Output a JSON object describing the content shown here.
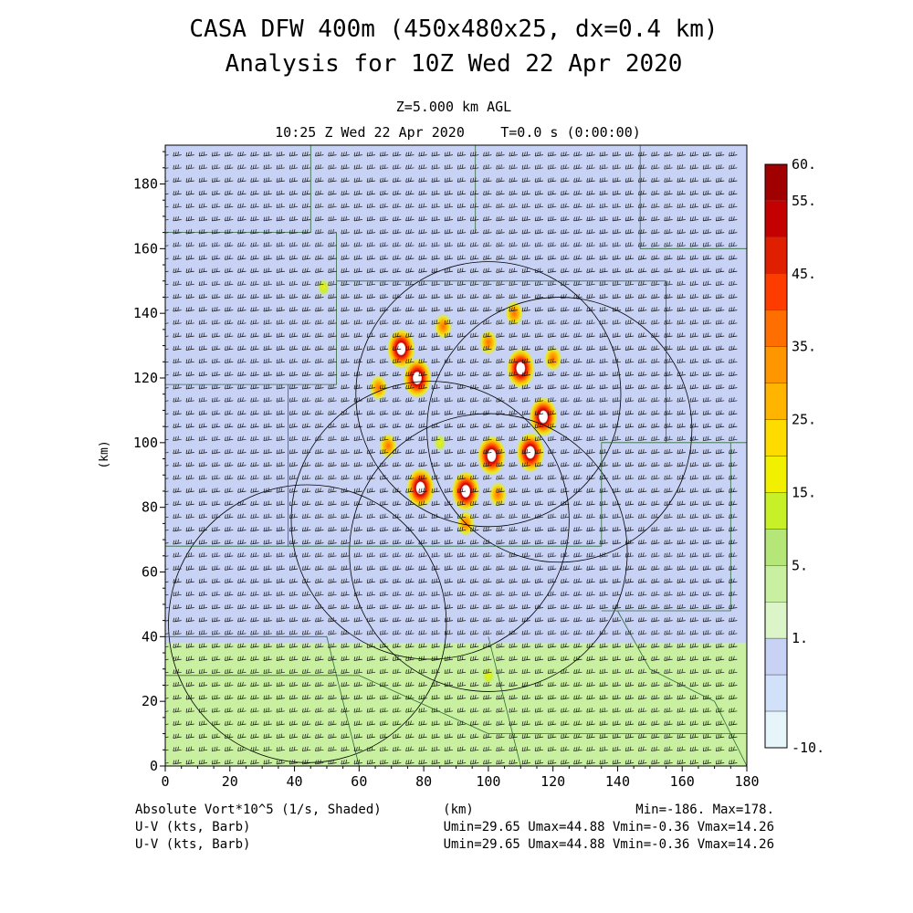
{
  "header": {
    "title_line1": "CASA DFW 400m (450x480x25, dx=0.4 km)",
    "title_line2": "Analysis for 10Z Wed 22 Apr 2020",
    "level": "Z=5.000 km AGL",
    "valid_time": "10:25 Z Wed 22 Apr 2020",
    "model_time": "T=0.0 s (0:00:00)"
  },
  "chart_data": {
    "type": "heatmap",
    "field": "Absolute Vort*10^5 (1/s, Shaded)",
    "xlabel": "(km)",
    "ylabel": "(km)",
    "xlim": [
      0,
      180
    ],
    "ylim": [
      0,
      192
    ],
    "x_ticks": [
      "0",
      "20",
      "40",
      "60",
      "80",
      "100",
      "120",
      "140",
      "160",
      "180"
    ],
    "y_ticks": [
      "0",
      "20",
      "40",
      "60",
      "80",
      "100",
      "120",
      "140",
      "160",
      "180"
    ],
    "colorbar": {
      "labels": [
        "60.",
        "55.",
        "45.",
        "35.",
        "25.",
        "15.",
        "5.",
        "1.",
        "-10."
      ],
      "colors": [
        "#a00000",
        "#c40000",
        "#e01e00",
        "#ff3c00",
        "#ff6e00",
        "#ff9600",
        "#ffb400",
        "#ffdc00",
        "#f0f000",
        "#c8f028",
        "#b4e678",
        "#c8f0a0",
        "#dcf5c8",
        "#c8d2f5",
        "#d2e1fa",
        "#e6f5fa"
      ]
    },
    "background_regions": [
      {
        "x": [
          0,
          180
        ],
        "y": [
          0,
          38
        ],
        "level": "5."
      },
      {
        "x": [
          0,
          180
        ],
        "y": [
          38,
          192
        ],
        "level": "1."
      }
    ],
    "vort_features": [
      {
        "x": 79,
        "y": 86,
        "value": 60
      },
      {
        "x": 73,
        "y": 129,
        "value": 55
      },
      {
        "x": 93,
        "y": 85,
        "value": 60
      },
      {
        "x": 101,
        "y": 96,
        "value": 45
      },
      {
        "x": 113,
        "y": 97,
        "value": 60
      },
      {
        "x": 117,
        "y": 108,
        "value": 60
      },
      {
        "x": 110,
        "y": 123,
        "value": 45
      },
      {
        "x": 100,
        "y": 131,
        "value": 35
      },
      {
        "x": 86,
        "y": 136,
        "value": 25
      },
      {
        "x": 78,
        "y": 120,
        "value": 45
      },
      {
        "x": 69,
        "y": 99,
        "value": 35
      },
      {
        "x": 93,
        "y": 75,
        "value": 25
      },
      {
        "x": 120,
        "y": 126,
        "value": 35
      },
      {
        "x": 66,
        "y": 117,
        "value": 25
      },
      {
        "x": 108,
        "y": 140,
        "value": 25
      },
      {
        "x": 103,
        "y": 84,
        "value": 25
      },
      {
        "x": 85,
        "y": 100,
        "value": 15
      },
      {
        "x": 100,
        "y": 28,
        "value": 15
      },
      {
        "x": 49,
        "y": 148,
        "value": 5
      }
    ],
    "radar_rings": [
      {
        "cx": 82,
        "cy": 76,
        "r": 43
      },
      {
        "cx": 100,
        "cy": 66,
        "r": 43
      },
      {
        "cx": 100,
        "cy": 115,
        "r": 41
      },
      {
        "cx": 44,
        "cy": 44,
        "r": 43
      },
      {
        "cx": 122,
        "cy": 104,
        "r": 41
      }
    ],
    "wind_barbs": {
      "field": "U-V (kts, Barb)",
      "umin": 29.65,
      "umax": 44.88,
      "vmin": -0.36,
      "vmax": 14.26,
      "representative_u": 38,
      "representative_v": 6
    },
    "stats": {
      "min": -186.0,
      "max": 178.0
    }
  },
  "footer": {
    "field_label": "Absolute Vort*10^5 (1/s, Shaded)",
    "km_label": "(km)",
    "minmax": "Min=-186. Max=178.",
    "barb_label_1": "U-V (kts, Barb)",
    "barb_label_2": "U-V (kts, Barb)",
    "barb_stats_1": "Umin=29.65 Umax=44.88 Vmin=-0.36 Vmax=14.26",
    "barb_stats_2": "Umin=29.65 Umax=44.88 Vmin=-0.36 Vmax=14.26"
  }
}
